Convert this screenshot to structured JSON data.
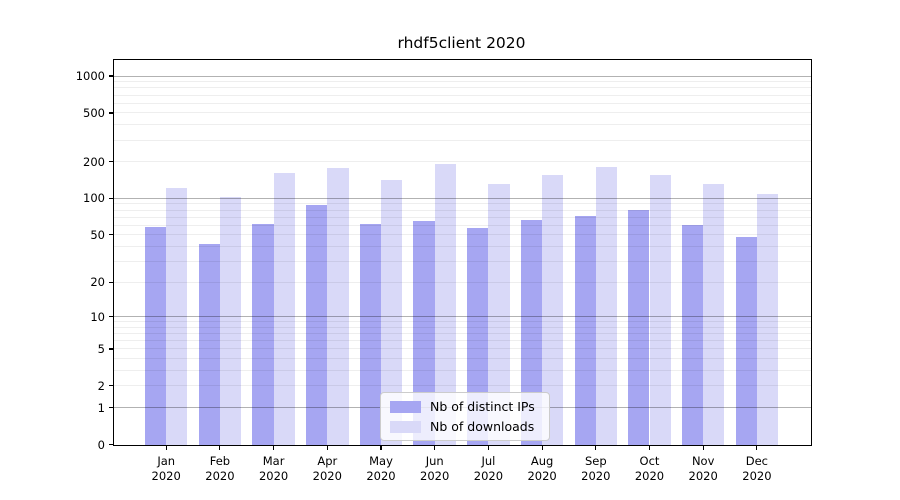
{
  "figure": {
    "title": "rhdf5client 2020"
  },
  "chart_data": {
    "type": "bar",
    "title": "rhdf5client 2020",
    "categories": [
      "Jan 2020",
      "Feb 2020",
      "Mar 2020",
      "Apr 2020",
      "May 2020",
      "Jun 2020",
      "Jul 2020",
      "Aug 2020",
      "Sep 2020",
      "Oct 2020",
      "Nov 2020",
      "Dec 2020"
    ],
    "series": [
      {
        "name": "Nb of distinct IPs",
        "color": "#a6a6f2",
        "values": [
          58,
          42,
          62,
          88,
          62,
          65,
          57,
          66,
          72,
          80,
          60,
          48
        ]
      },
      {
        "name": "Nb of downloads",
        "color": "#d9d9f8",
        "values": [
          122,
          102,
          163,
          178,
          142,
          192,
          131,
          156,
          180,
          156,
          132,
          109
        ]
      }
    ],
    "xlabel": "",
    "ylabel": "",
    "y_axis": {
      "scale": "log1p",
      "ticks": [
        0,
        1,
        2,
        5,
        10,
        20,
        50,
        100,
        200,
        500,
        1000
      ],
      "major_gridlines": [
        1,
        10,
        100,
        1000
      ],
      "minor_gridlines": [
        2,
        3,
        4,
        5,
        6,
        7,
        8,
        9,
        20,
        30,
        40,
        50,
        60,
        70,
        80,
        90,
        200,
        300,
        400,
        500,
        600,
        700,
        800,
        900
      ],
      "ylim": [
        0,
        1350
      ]
    },
    "legend": {
      "position": "lower-center-inside"
    }
  }
}
